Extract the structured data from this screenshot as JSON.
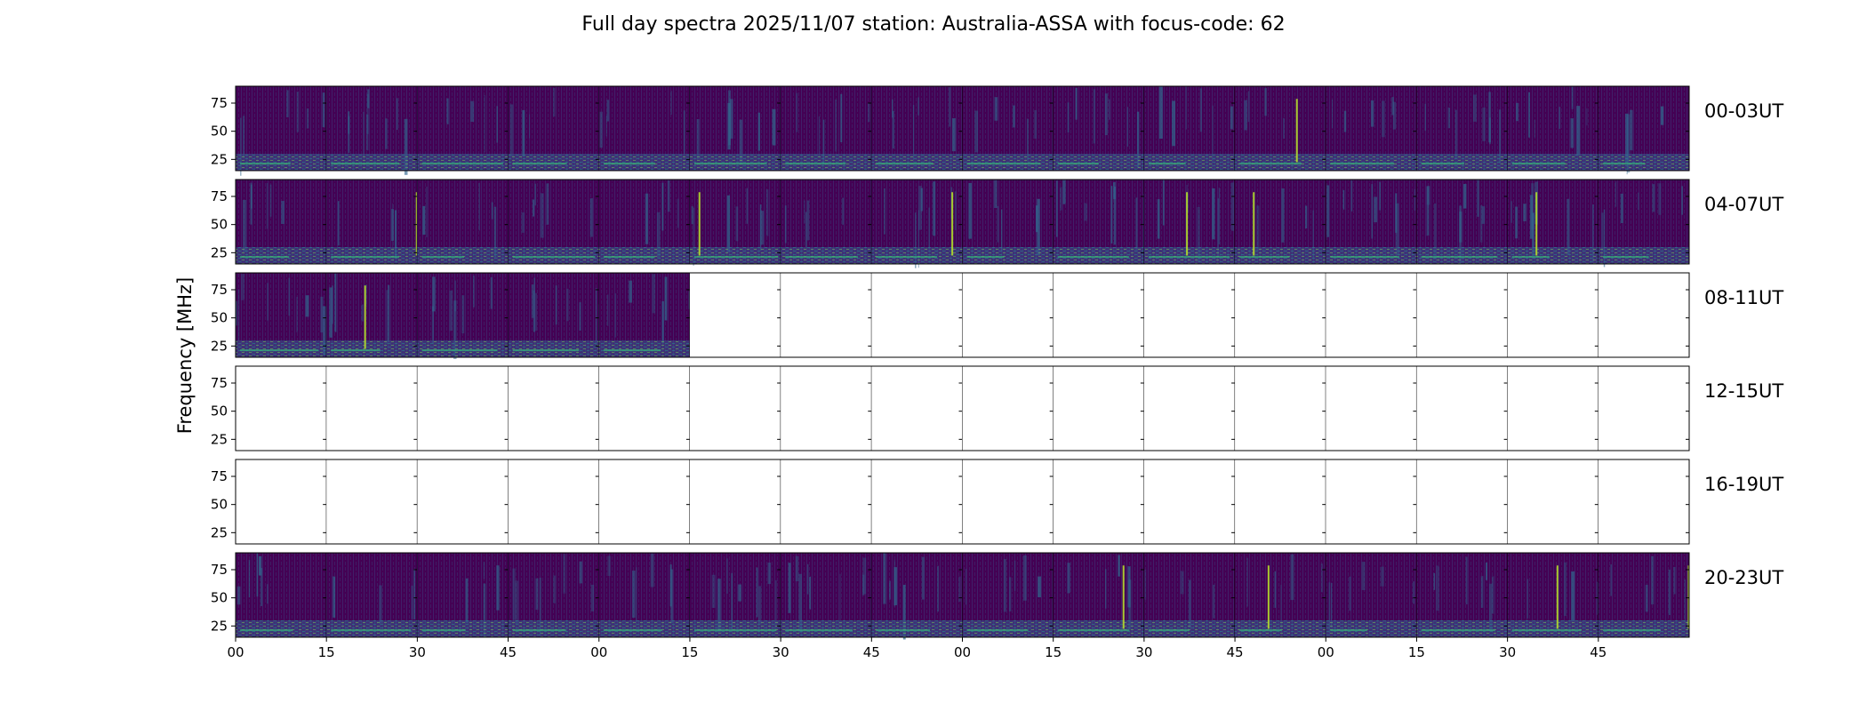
{
  "chart_data": {
    "type": "heatmap",
    "title": "Full day spectra 2025/11/07 station: Australia-ASSA with focus-code: 62",
    "ylabel": "Frequency [MHz]",
    "xlabel": "",
    "colormap": "viridis",
    "yticks": [
      "75",
      "50",
      "25"
    ],
    "ytick_values": [
      75,
      50,
      25
    ],
    "ylim": [
      15,
      90
    ],
    "xticks": [
      "00",
      "15",
      "30",
      "45",
      "00",
      "15",
      "30",
      "45",
      "00",
      "15",
      "30",
      "45",
      "00",
      "15",
      "30",
      "45"
    ],
    "panels_per_row": 16,
    "panel_minutes": 15,
    "rows": [
      {
        "label": "00-03UT",
        "panels_with_data": 16
      },
      {
        "label": "04-07UT",
        "panels_with_data": 16
      },
      {
        "label": "08-11UT",
        "panels_with_data": 5
      },
      {
        "label": "12-15UT",
        "panels_with_data": 0
      },
      {
        "label": "16-19UT",
        "panels_with_data": 0
      },
      {
        "label": "20-23UT",
        "panels_with_data": 16
      }
    ],
    "colors": {
      "background": "#440154",
      "low": "#46337e",
      "mid": "#31688e",
      "high": "#35b779",
      "peak": "#b5de2b"
    }
  }
}
